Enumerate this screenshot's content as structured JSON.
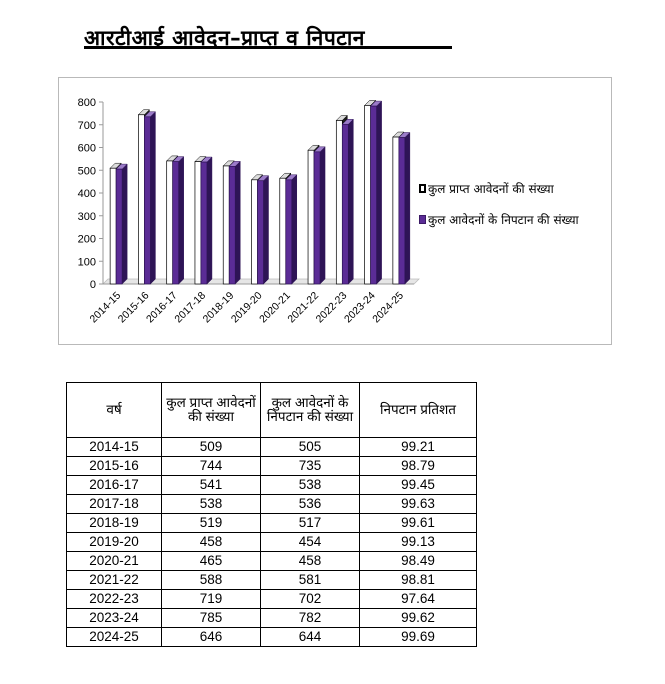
{
  "page_title": "आरटीआई आवेदन–प्राप्त व निपटान",
  "chart_data": {
    "type": "bar",
    "categories": [
      "2014-15",
      "2015-16",
      "2016-17",
      "2017-18",
      "2018-19",
      "2019-20",
      "2020-21",
      "2021-22",
      "2022-23",
      "2023-24",
      "2024-25"
    ],
    "series": [
      {
        "name": "कुल प्राप्त आवेदनों की संख्या",
        "values": [
          509,
          744,
          541,
          538,
          519,
          458,
          465,
          588,
          719,
          785,
          646
        ],
        "color": "#ffffff"
      },
      {
        "name": "कुल आवेदनों के निपटान  की संख्या",
        "values": [
          505,
          735,
          538,
          536,
          517,
          454,
          458,
          581,
          702,
          782,
          644
        ],
        "color": "#5b2c96"
      }
    ],
    "ylim": [
      0,
      800
    ],
    "yticks": [
      "0",
      "100",
      "200",
      "300",
      "400",
      "500",
      "600",
      "700",
      "800"
    ],
    "grid": false,
    "legend": "right",
    "style": "3d-bar"
  },
  "table": {
    "headers": [
      "वर्ष",
      "कुल प्राप्त आवेदनों की संख्या",
      "कुल आवेदनों के निपटान  की संख्या",
      "निपटान प्रतिशत"
    ],
    "rows": [
      [
        "2014-15",
        "509",
        "505",
        "99.21"
      ],
      [
        "2015-16",
        "744",
        "735",
        "98.79"
      ],
      [
        "2016-17",
        "541",
        "538",
        "99.45"
      ],
      [
        "2017-18",
        "538",
        "536",
        "99.63"
      ],
      [
        "2018-19",
        "519",
        "517",
        "99.61"
      ],
      [
        "2019-20",
        "458",
        "454",
        "99.13"
      ],
      [
        "2020-21",
        "465",
        "458",
        "98.49"
      ],
      [
        "2021-22",
        "588",
        "581",
        "98.81"
      ],
      [
        "2022-23",
        "719",
        "702",
        "97.64"
      ],
      [
        "2023-24",
        "785",
        "782",
        "99.62"
      ],
      [
        "2024-25",
        "646",
        "644",
        "99.69"
      ]
    ]
  }
}
